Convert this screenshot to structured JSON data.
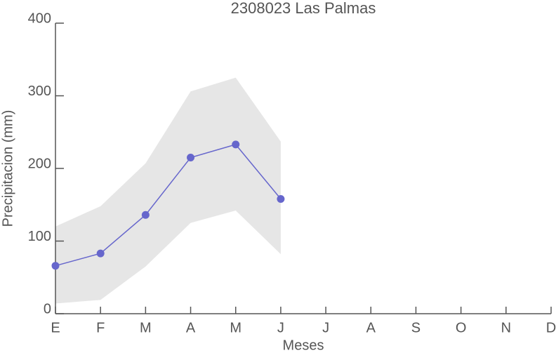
{
  "chart_data": {
    "type": "line",
    "title": "2308023 Las Palmas",
    "x_label": "Meses",
    "y_label": "Precipitacion (mm)",
    "categories": [
      "E",
      "F",
      "M",
      "A",
      "M",
      "J",
      "J",
      "A",
      "S",
      "O",
      "N",
      "D"
    ],
    "series": [
      {
        "name": "Precipitacion",
        "color": "#6666cc",
        "values": [
          66,
          83,
          136,
          215,
          233,
          158,
          null,
          null,
          null,
          null,
          null,
          null
        ]
      }
    ],
    "band": {
      "color": "#e6e6e6",
      "upper": [
        120,
        148,
        207,
        306,
        325,
        237,
        null,
        null,
        null,
        null,
        null,
        null
      ],
      "lower": [
        14,
        19,
        65,
        125,
        142,
        82,
        null,
        null,
        null,
        null,
        null,
        null
      ]
    },
    "ylim": [
      0,
      400
    ],
    "yticks": [
      0,
      100,
      200,
      300,
      400
    ],
    "grid": false
  }
}
